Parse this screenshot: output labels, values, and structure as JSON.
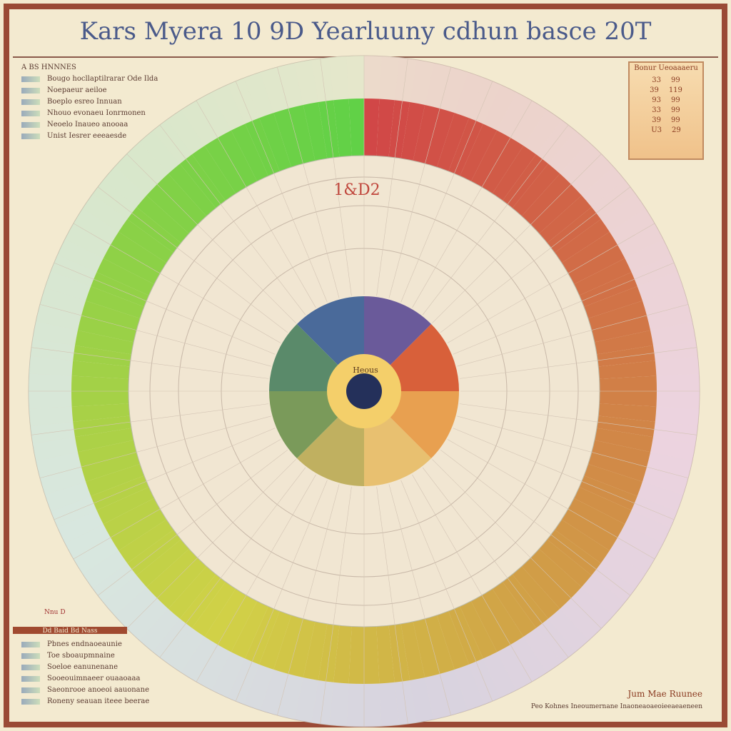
{
  "header": {
    "title": "Kars Myera 10 9D Yearluuny cdhun basce 20T"
  },
  "legend_top": {
    "title": "A BS HNNNES",
    "items": [
      "Bougo hocllaptilrarar Ode Ilda",
      "Noepaeur aeiloe",
      "Boeplo esreo Innuan",
      "Nhouo evonaeu Ionrmonen",
      "Neoelo Inaueo anooaa",
      "Unist Iesrer eeeaesde"
    ]
  },
  "table": {
    "title": "Bonur Ueoaaaeru",
    "rows": [
      [
        "33",
        "99"
      ],
      [
        "39",
        "119"
      ],
      [
        "93",
        "99"
      ],
      [
        "33",
        "99"
      ],
      [
        "39",
        "99"
      ],
      [
        "U3",
        "29"
      ]
    ]
  },
  "wheel": {
    "top_label": "1&D2",
    "center_label": "Heous",
    "side_label": "Nnu D"
  },
  "legend_bottom": {
    "title": "Dd Baid Bd Nass",
    "items": [
      "Pbnes endnaoeaunie",
      "Toe sboaupmnaine",
      "Soeloe eanunenane",
      "Sooeouimnaeer ouaaoaaa",
      "Saeonrooe anoeoi aauonane",
      "Roneny seauan iteee beerae"
    ]
  },
  "footer": {
    "title": "Jum Mae Ruunee",
    "text": "Peo Kohnes Ineoumernane Inaoneaoaeoieeaeaeneen"
  }
}
